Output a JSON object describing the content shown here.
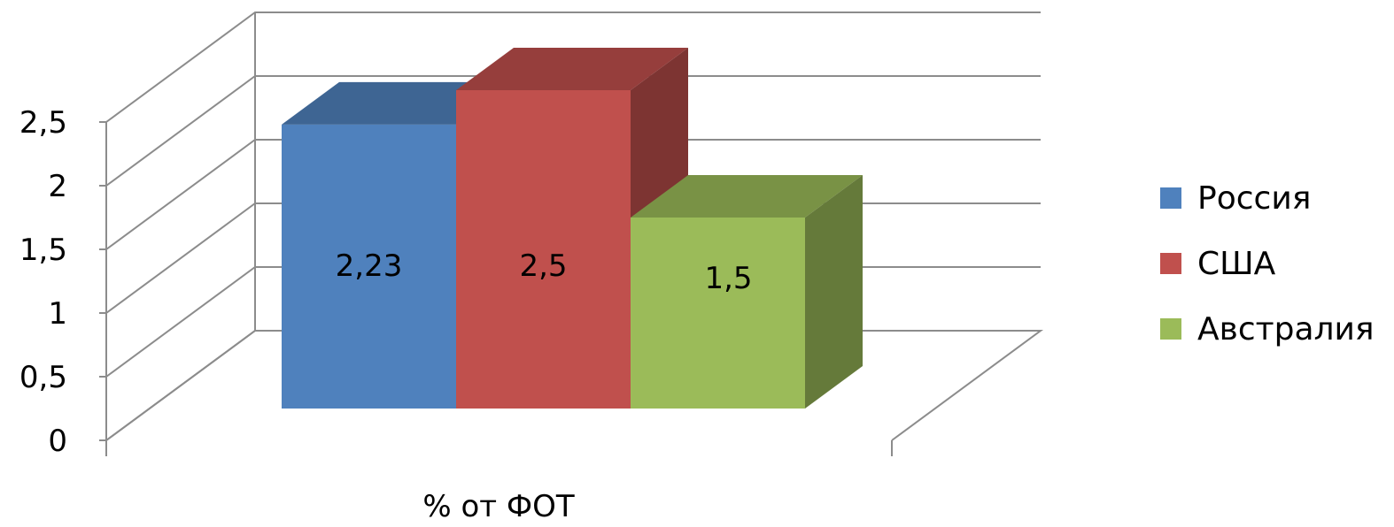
{
  "chart_data": {
    "type": "bar",
    "categories": [
      "% от ФОТ"
    ],
    "series": [
      {
        "name": "Россия",
        "values": [
          2.23
        ],
        "color": "#4F81BD",
        "label": "2,23"
      },
      {
        "name": "США",
        "values": [
          2.5
        ],
        "color": "#C0504D",
        "label": "2,5"
      },
      {
        "name": "Австралия",
        "values": [
          1.5
        ],
        "color": "#9BBB59",
        "label": "1,5"
      }
    ],
    "ylim": [
      0,
      2.5
    ],
    "yticks": [
      "0",
      "0,5",
      "1",
      "1,5",
      "2",
      "2,5"
    ],
    "grid": true,
    "legend_position": "right",
    "style": "3d-clustered-column"
  }
}
